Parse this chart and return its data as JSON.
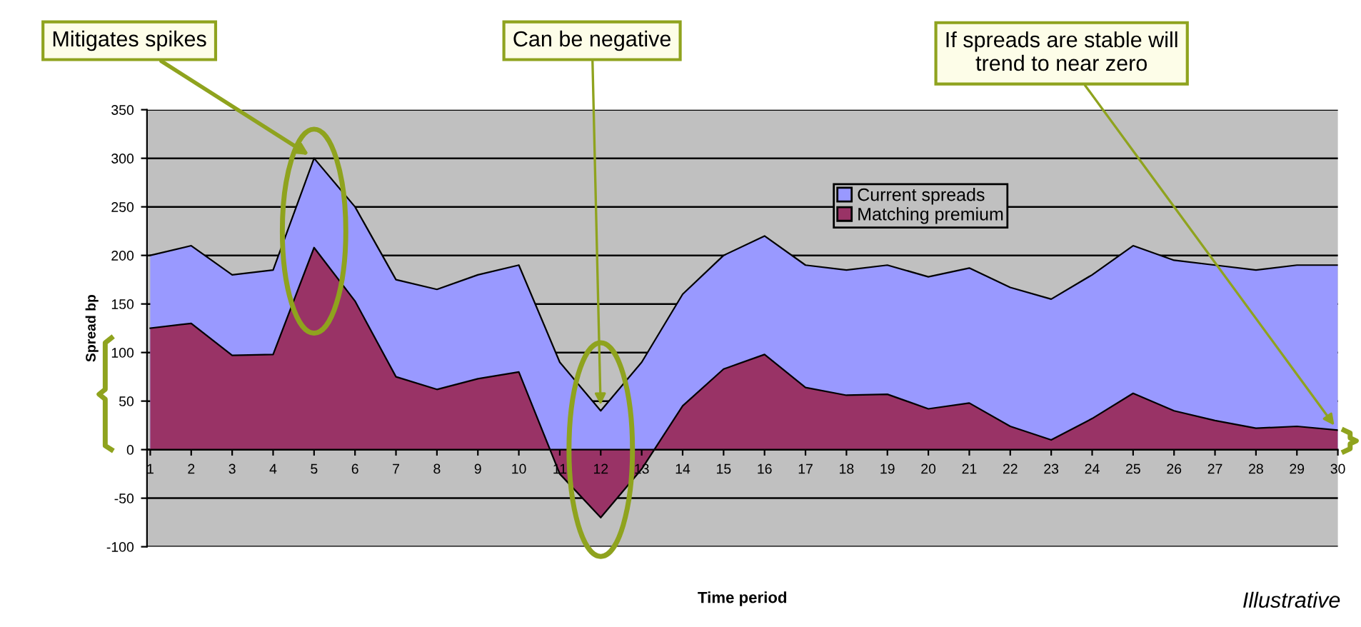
{
  "chart_data": {
    "type": "area",
    "xlabel": "Time period",
    "ylabel": "Spread bp",
    "categories": [
      "1",
      "2",
      "3",
      "4",
      "5",
      "6",
      "7",
      "8",
      "9",
      "10",
      "11",
      "12",
      "13",
      "14",
      "15",
      "16",
      "17",
      "18",
      "19",
      "20",
      "21",
      "22",
      "23",
      "24",
      "25",
      "26",
      "27",
      "28",
      "29",
      "30"
    ],
    "series": [
      {
        "name": "Current spreads",
        "color": "#9999ff",
        "values": [
          200,
          210,
          180,
          185,
          300,
          250,
          175,
          165,
          180,
          190,
          90,
          40,
          90,
          160,
          200,
          220,
          190,
          185,
          190,
          178,
          187,
          167,
          155,
          180,
          210,
          195,
          190,
          185,
          190,
          190
        ]
      },
      {
        "name": "Matching premium",
        "color": "#993366",
        "values": [
          125,
          130,
          97,
          98,
          208,
          153,
          75,
          62,
          73,
          80,
          -25,
          -70,
          -20,
          45,
          83,
          98,
          64,
          56,
          57,
          42,
          48,
          24,
          10,
          32,
          58,
          40,
          30,
          22,
          24,
          20
        ]
      }
    ],
    "ylim": [
      -100,
      350
    ],
    "yticks": [
      -100,
      -50,
      0,
      50,
      100,
      150,
      200,
      250,
      300,
      350
    ],
    "grid": "y",
    "legend": "top right",
    "annotations": [
      {
        "text": "Mitigates spikes",
        "x": "5",
        "y": 300
      },
      {
        "text": "Can be negative",
        "x": "12",
        "y": 40
      },
      {
        "text": "If spreads are stable will\ntrend to near zero",
        "x": "30",
        "y": 20
      },
      "Illustrative"
    ]
  }
}
